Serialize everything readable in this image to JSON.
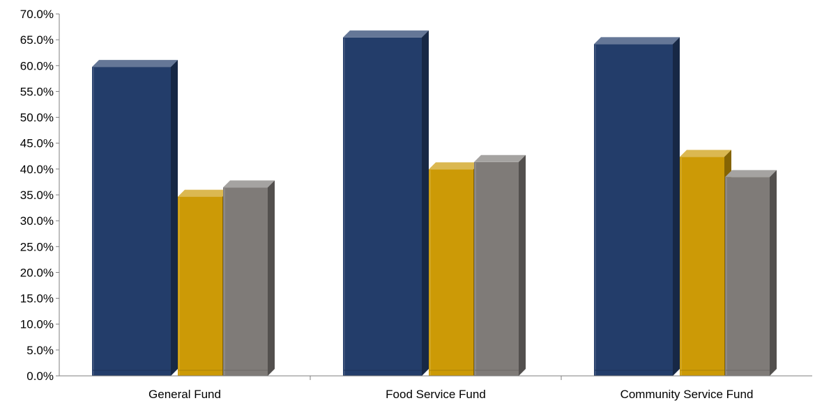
{
  "chart_data": {
    "type": "bar",
    "title": "",
    "xlabel": "",
    "ylabel": "",
    "categories": [
      "General Fund",
      "Food Service Fund",
      "Community Service Fund"
    ],
    "series": [
      {
        "values": [
          61.1,
          66.8,
          65.5
        ],
        "color": "#233D6A"
      },
      {
        "values": [
          36.0,
          41.3,
          43.7
        ],
        "color": "#CC9A06"
      },
      {
        "values": [
          37.8,
          42.7,
          39.8
        ],
        "color": "#7F7B78"
      }
    ],
    "ylim": [
      0,
      70
    ],
    "yticks": [
      "0.0%",
      "5.0%",
      "10.0%",
      "15.0%",
      "20.0%",
      "25.0%",
      "30.0%",
      "35.0%",
      "40.0%",
      "45.0%",
      "50.0%",
      "55.0%",
      "60.0%",
      "65.0%",
      "70.0%"
    ],
    "grid": false,
    "legend": "none",
    "style": "3d-bevel"
  }
}
